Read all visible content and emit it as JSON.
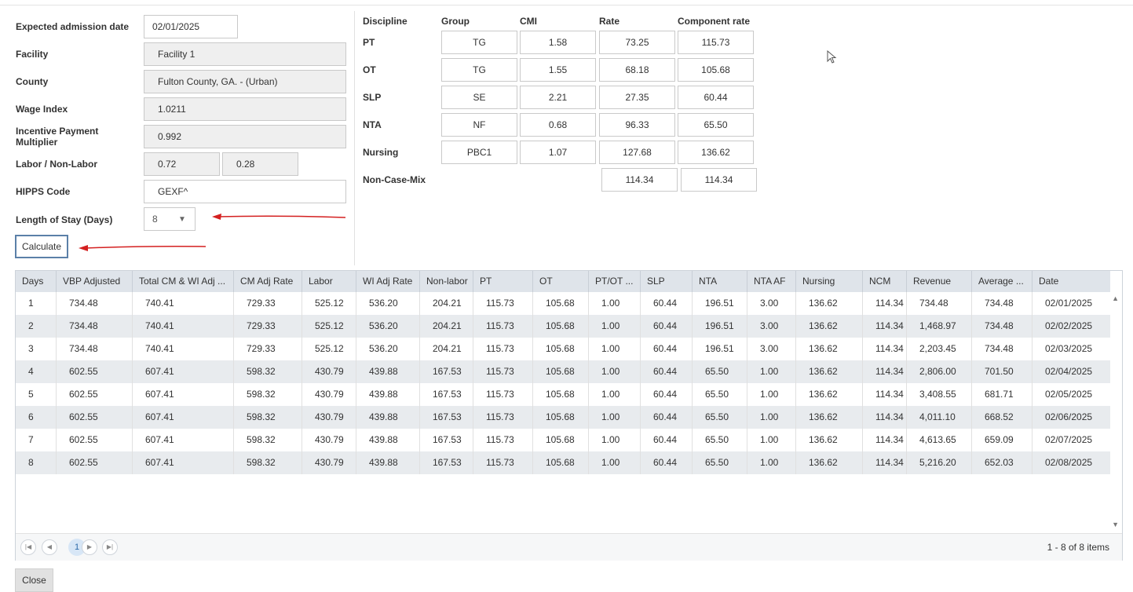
{
  "form": {
    "admission_label": "Expected admission date",
    "admission_value": "02/01/2025",
    "facility_label": "Facility",
    "facility_value": "Facility 1",
    "county_label": "County",
    "county_value": "Fulton County, GA. - (Urban)",
    "wage_label": "Wage Index",
    "wage_value": "1.0211",
    "ipm_label_line1": "Incentive Payment",
    "ipm_label_line2": "Multiplier",
    "ipm_value": "0.992",
    "labor_label": "Labor / Non-Labor",
    "labor_value": "0.72",
    "nonlabor_value": "0.28",
    "hipps_label": "HIPPS Code",
    "hipps_value": "GEXF^",
    "los_label": "Length of Stay (Days)",
    "los_value": "8",
    "calculate_label": "Calculate"
  },
  "components": {
    "headers": [
      "Discipline",
      "Group",
      "CMI",
      "Rate",
      "Component rate"
    ],
    "rows": [
      {
        "discipline": "PT",
        "group": "TG",
        "cmi": "1.58",
        "rate": "73.25",
        "component": "115.73"
      },
      {
        "discipline": "OT",
        "group": "TG",
        "cmi": "1.55",
        "rate": "68.18",
        "component": "105.68"
      },
      {
        "discipline": "SLP",
        "group": "SE",
        "cmi": "2.21",
        "rate": "27.35",
        "component": "60.44"
      },
      {
        "discipline": "NTA",
        "group": "NF",
        "cmi": "0.68",
        "rate": "96.33",
        "component": "65.50"
      },
      {
        "discipline": "Nursing",
        "group": "PBC1",
        "cmi": "1.07",
        "rate": "127.68",
        "component": "136.62"
      }
    ],
    "noncase_label": "Non-Case-Mix",
    "noncase_rate": "114.34",
    "noncase_component": "114.34"
  },
  "grid": {
    "columns": [
      "Days",
      "VBP Adjusted",
      "Total CM & WI Adj ...",
      "CM Adj Rate",
      "Labor",
      "WI Adj Rate",
      "Non-labor",
      "PT",
      "OT",
      "PT/OT ...",
      "SLP",
      "NTA",
      "NTA AF",
      "Nursing",
      "NCM",
      "Revenue",
      "Average ...",
      "Date"
    ],
    "rows": [
      [
        "1",
        "734.48",
        "740.41",
        "729.33",
        "525.12",
        "536.20",
        "204.21",
        "115.73",
        "105.68",
        "1.00",
        "60.44",
        "196.51",
        "3.00",
        "136.62",
        "114.34",
        "734.48",
        "734.48",
        "02/01/2025"
      ],
      [
        "2",
        "734.48",
        "740.41",
        "729.33",
        "525.12",
        "536.20",
        "204.21",
        "115.73",
        "105.68",
        "1.00",
        "60.44",
        "196.51",
        "3.00",
        "136.62",
        "114.34",
        "1,468.97",
        "734.48",
        "02/02/2025"
      ],
      [
        "3",
        "734.48",
        "740.41",
        "729.33",
        "525.12",
        "536.20",
        "204.21",
        "115.73",
        "105.68",
        "1.00",
        "60.44",
        "196.51",
        "3.00",
        "136.62",
        "114.34",
        "2,203.45",
        "734.48",
        "02/03/2025"
      ],
      [
        "4",
        "602.55",
        "607.41",
        "598.32",
        "430.79",
        "439.88",
        "167.53",
        "115.73",
        "105.68",
        "1.00",
        "60.44",
        "65.50",
        "1.00",
        "136.62",
        "114.34",
        "2,806.00",
        "701.50",
        "02/04/2025"
      ],
      [
        "5",
        "602.55",
        "607.41",
        "598.32",
        "430.79",
        "439.88",
        "167.53",
        "115.73",
        "105.68",
        "1.00",
        "60.44",
        "65.50",
        "1.00",
        "136.62",
        "114.34",
        "3,408.55",
        "681.71",
        "02/05/2025"
      ],
      [
        "6",
        "602.55",
        "607.41",
        "598.32",
        "430.79",
        "439.88",
        "167.53",
        "115.73",
        "105.68",
        "1.00",
        "60.44",
        "65.50",
        "1.00",
        "136.62",
        "114.34",
        "4,011.10",
        "668.52",
        "02/06/2025"
      ],
      [
        "7",
        "602.55",
        "607.41",
        "598.32",
        "430.79",
        "439.88",
        "167.53",
        "115.73",
        "105.68",
        "1.00",
        "60.44",
        "65.50",
        "1.00",
        "136.62",
        "114.34",
        "4,613.65",
        "659.09",
        "02/07/2025"
      ],
      [
        "8",
        "602.55",
        "607.41",
        "598.32",
        "430.79",
        "439.88",
        "167.53",
        "115.73",
        "105.68",
        "1.00",
        "60.44",
        "65.50",
        "1.00",
        "136.62",
        "114.34",
        "5,216.20",
        "652.03",
        "02/08/2025"
      ]
    ]
  },
  "pager": {
    "current_page": "1",
    "info": "1 - 8 of 8 items",
    "icons": [
      "first-page-icon",
      "prev-page-icon",
      "next-page-icon",
      "last-page-icon"
    ]
  },
  "close_label": "Close",
  "colors": {
    "annotation_arrow": "#d42020",
    "header_bg": "#dfe4ea",
    "alt_row_bg": "#e8ebee",
    "readonly_bg": "#efefef"
  }
}
